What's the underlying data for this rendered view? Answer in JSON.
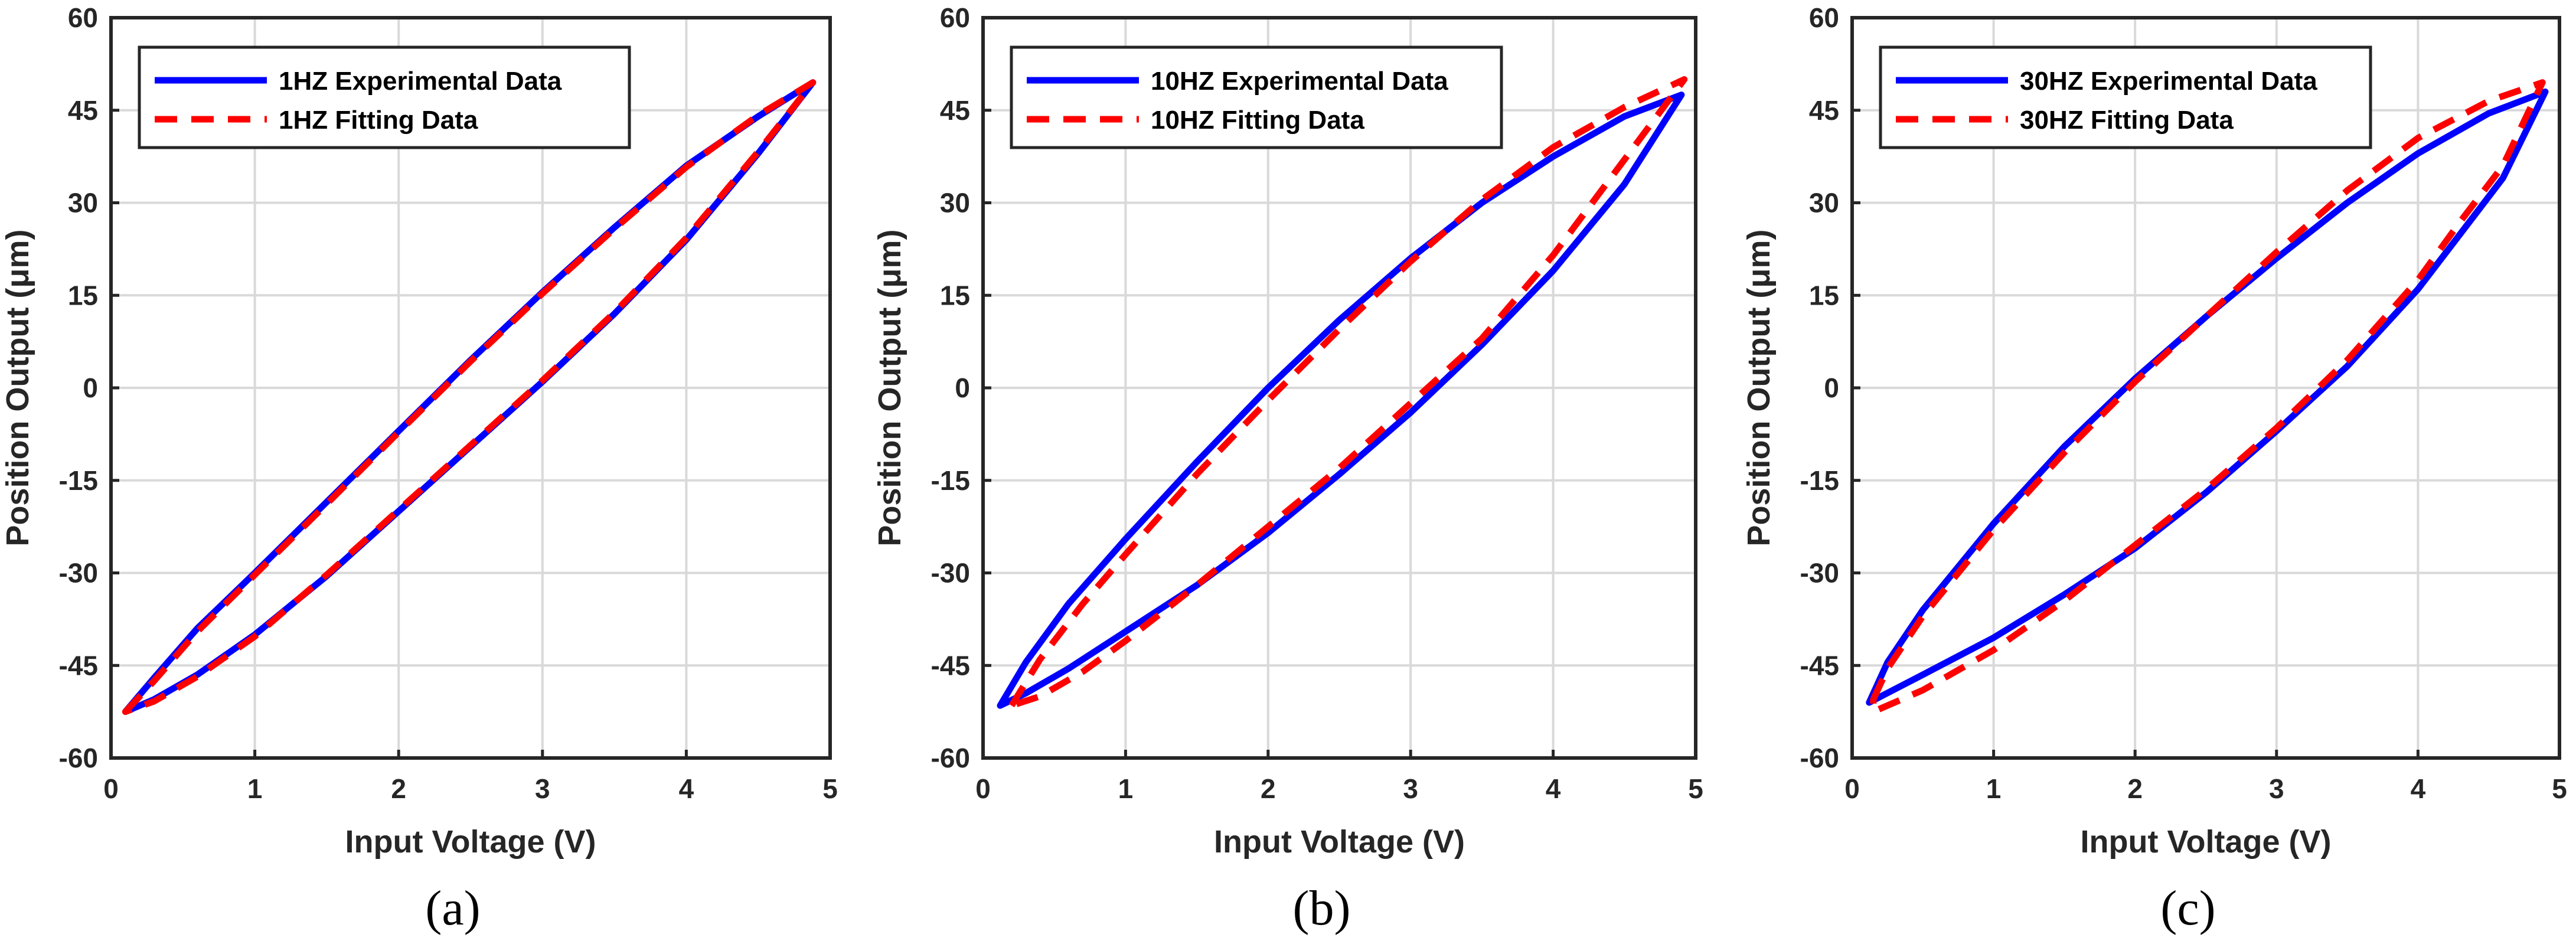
{
  "chart_data": [
    {
      "type": "line",
      "caption": "(a)",
      "xlabel": "Input Voltage (V)",
      "ylabel": "Position Output (μm)",
      "xlim": [
        0,
        5
      ],
      "ylim": [
        -60,
        60
      ],
      "xticks": [
        "0",
        "1",
        "2",
        "3",
        "4",
        "5"
      ],
      "yticks": [
        "-60",
        "-45",
        "-30",
        "-15",
        "0",
        "15",
        "30",
        "45",
        "60"
      ],
      "grid": true,
      "legend_position": "top-left",
      "series": [
        {
          "name": "1HZ Experimental Data",
          "color": "#0000ff",
          "style": "solid",
          "upper": {
            "x": [
              0.1,
              0.3,
              0.6,
              1.0,
              1.5,
              2.0,
              2.5,
              3.0,
              3.5,
              4.0,
              4.5,
              4.88
            ],
            "y": [
              -52.5,
              -47,
              -39,
              -30,
              -18.5,
              -7,
              4.5,
              15.5,
              26,
              36,
              44,
              49.5
            ]
          },
          "lower": {
            "x": [
              4.88,
              4.5,
              4.0,
              3.5,
              3.0,
              2.5,
              2.0,
              1.5,
              1.0,
              0.6,
              0.3,
              0.1
            ],
            "y": [
              49.5,
              38,
              24,
              12,
              1,
              -9.5,
              -20,
              -30.5,
              -40,
              -46.5,
              -50.5,
              -52.5
            ]
          }
        },
        {
          "name": "1HZ Fitting Data",
          "color": "#ff0000",
          "style": "dashed",
          "upper": {
            "x": [
              0.1,
              0.3,
              0.6,
              1.0,
              1.5,
              2.0,
              2.5,
              3.0,
              3.5,
              4.0,
              4.5,
              4.88
            ],
            "y": [
              -52.5,
              -47.5,
              -39.5,
              -30.3,
              -18.8,
              -7.2,
              4.3,
              15.3,
              25.8,
              35.8,
              44.2,
              49.5
            ]
          },
          "lower": {
            "x": [
              4.88,
              4.5,
              4.0,
              3.5,
              3.0,
              2.5,
              2.0,
              1.5,
              1.0,
              0.6,
              0.3,
              0.1
            ],
            "y": [
              49.5,
              38.3,
              24.3,
              12.2,
              1.2,
              -9.3,
              -19.8,
              -30.3,
              -40.3,
              -46.8,
              -50.8,
              -52.5
            ]
          }
        }
      ]
    },
    {
      "type": "line",
      "caption": "(b)",
      "xlabel": "Input Voltage (V)",
      "ylabel": "Position Output (μm)",
      "xlim": [
        0,
        5
      ],
      "ylim": [
        -60,
        60
      ],
      "xticks": [
        "0",
        "1",
        "2",
        "3",
        "4",
        "5"
      ],
      "yticks": [
        "-60",
        "-45",
        "-30",
        "-15",
        "0",
        "15",
        "30",
        "45",
        "60"
      ],
      "grid": true,
      "legend_position": "top-left",
      "series": [
        {
          "name": "10HZ Experimental Data",
          "color": "#0000ff",
          "style": "solid",
          "upper": {
            "x": [
              0.12,
              0.3,
              0.6,
              1.0,
              1.5,
              2.0,
              2.5,
              3.0,
              3.5,
              4.0,
              4.5,
              4.9
            ],
            "y": [
              -51.5,
              -44.5,
              -35,
              -24.5,
              -12,
              0,
              11,
              21,
              30,
              37.5,
              44,
              47.5
            ]
          },
          "lower": {
            "x": [
              4.9,
              4.5,
              4.0,
              3.5,
              3.0,
              2.5,
              2.0,
              1.5,
              1.0,
              0.6,
              0.3,
              0.12
            ],
            "y": [
              47.5,
              33,
              19,
              7,
              -4,
              -14,
              -23.5,
              -32,
              -39.5,
              -45.5,
              -49.5,
              -51.5
            ]
          }
        },
        {
          "name": "10HZ Fitting Data",
          "color": "#ff0000",
          "style": "dashed",
          "upper": {
            "x": [
              0.2,
              0.4,
              0.7,
              1.0,
              1.5,
              2.0,
              2.5,
              3.0,
              3.5,
              4.0,
              4.5,
              4.92
            ],
            "y": [
              -51.5,
              -44,
              -35,
              -27,
              -14,
              -2,
              9.5,
              20.5,
              30.5,
              39,
              45.5,
              50
            ]
          },
          "lower": {
            "x": [
              4.92,
              4.5,
              4.0,
              3.5,
              3.0,
              2.5,
              2.0,
              1.5,
              1.0,
              0.7,
              0.4,
              0.2
            ],
            "y": [
              50,
              37,
              21.5,
              8,
              -2.5,
              -13,
              -22.5,
              -32,
              -41,
              -46,
              -50,
              -51.5
            ]
          }
        }
      ]
    },
    {
      "type": "line",
      "caption": "(c)",
      "xlabel": "Input Voltage (V)",
      "ylabel": "Position Output (μm)",
      "xlim": [
        0,
        5
      ],
      "ylim": [
        -60,
        60
      ],
      "xticks": [
        "0",
        "1",
        "2",
        "3",
        "4",
        "5"
      ],
      "yticks": [
        "-60",
        "-45",
        "-30",
        "-15",
        "0",
        "15",
        "30",
        "45",
        "60"
      ],
      "grid": true,
      "legend_position": "top-left",
      "series": [
        {
          "name": "30HZ Experimental Data",
          "color": "#0000ff",
          "style": "solid",
          "upper": {
            "x": [
              0.12,
              0.25,
              0.5,
              1.0,
              1.5,
              2.0,
              2.5,
              3.0,
              3.5,
              4.0,
              4.5,
              4.9
            ],
            "y": [
              -51,
              -44.5,
              -36,
              -22,
              -9.5,
              1.5,
              11.5,
              21,
              30,
              38,
              44.5,
              48
            ]
          },
          "lower": {
            "x": [
              4.9,
              4.6,
              4.3,
              4.0,
              3.5,
              3.0,
              2.5,
              2.0,
              1.5,
              1.0,
              0.5,
              0.12
            ],
            "y": [
              48,
              34,
              25,
              16,
              3.5,
              -7,
              -17,
              -26,
              -33.5,
              -40.5,
              -46.5,
              -51
            ]
          }
        },
        {
          "name": "30HZ Fitting Data",
          "color": "#ff0000",
          "style": "dashed",
          "upper": {
            "x": [
              0.15,
              0.25,
              0.5,
              1.0,
              1.5,
              2.0,
              2.5,
              3.0,
              3.5,
              4.0,
              4.5,
              4.88
            ],
            "y": [
              -50.5,
              -45.5,
              -37,
              -23,
              -10.5,
              1,
              11.5,
              22,
              32,
              40.5,
              46.5,
              49.5
            ]
          },
          "lower": {
            "x": [
              4.88,
              4.6,
              4.3,
              4.0,
              3.5,
              3.0,
              2.5,
              2.0,
              1.5,
              1.0,
              0.5,
              0.15
            ],
            "y": [
              49.5,
              36,
              27,
              17.5,
              4.5,
              -6.5,
              -16.5,
              -25.5,
              -34.5,
              -42.5,
              -49,
              -52.5
            ]
          }
        }
      ]
    }
  ]
}
